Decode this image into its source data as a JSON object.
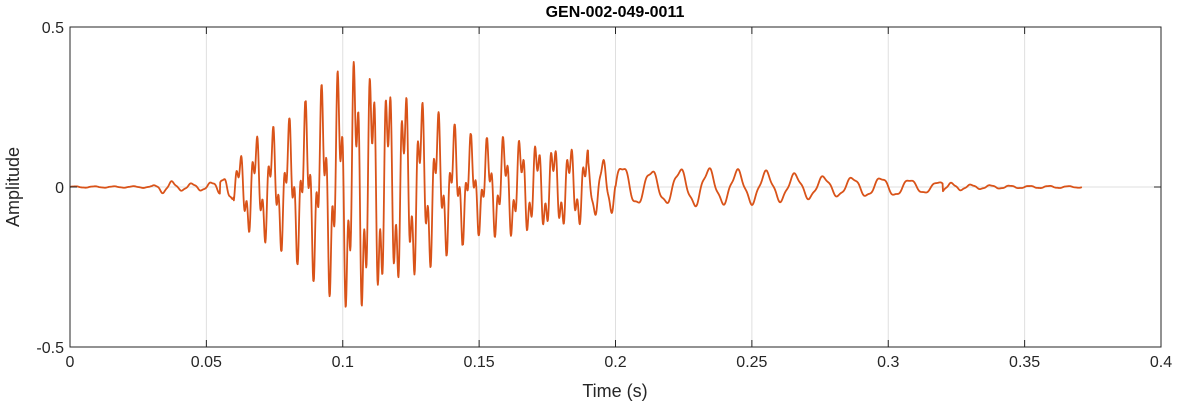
{
  "chart_data": {
    "type": "line",
    "title": "GEN-002-049-0011",
    "xlabel": "Time (s)",
    "ylabel": "Amplitude",
    "xlim": [
      0,
      0.4
    ],
    "ylim": [
      -0.5,
      0.5
    ],
    "xticks": [
      0,
      0.05,
      0.1,
      0.15,
      0.2,
      0.25,
      0.3,
      0.35,
      0.4
    ],
    "xtick_labels": [
      "0",
      "0.05",
      "0.1",
      "0.15",
      "0.2",
      "0.25",
      "0.3",
      "0.35",
      "0.4"
    ],
    "yticks": [
      -0.5,
      0,
      0.5
    ],
    "ytick_labels": [
      "-0.5",
      "0",
      "0.5"
    ],
    "grid": true,
    "series": [
      {
        "color": "#D95319",
        "x": [
          0.0,
          0.01,
          0.02,
          0.03,
          0.033,
          0.035,
          0.04,
          0.05,
          0.055,
          0.06,
          0.065,
          0.07,
          0.08,
          0.09,
          0.1,
          0.105,
          0.11,
          0.12,
          0.13,
          0.14,
          0.15,
          0.16,
          0.17,
          0.18,
          0.19,
          0.2,
          0.21,
          0.22,
          0.23,
          0.24,
          0.25,
          0.26,
          0.27,
          0.28,
          0.29,
          0.3,
          0.31,
          0.32,
          0.33,
          0.34,
          0.35,
          0.36,
          0.371
        ],
        "envelope": [
          0.003,
          0.003,
          0.003,
          0.004,
          0.02,
          0.03,
          0.015,
          0.015,
          0.03,
          0.06,
          0.15,
          0.17,
          0.21,
          0.3,
          0.38,
          0.43,
          0.4,
          0.34,
          0.27,
          0.2,
          0.15,
          0.16,
          0.15,
          0.14,
          0.12,
          0.1,
          0.07,
          0.07,
          0.08,
          0.07,
          0.07,
          0.06,
          0.05,
          0.04,
          0.04,
          0.04,
          0.03,
          0.02,
          0.01,
          0.007,
          0.005,
          0.005,
          0.003
        ]
      }
    ]
  }
}
